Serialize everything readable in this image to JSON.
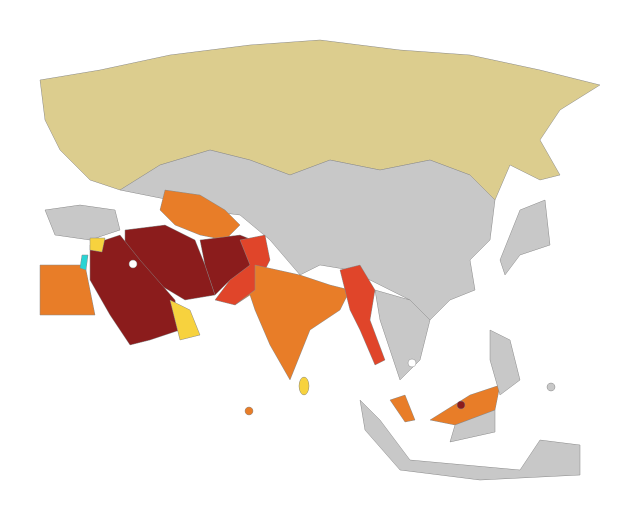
{
  "map": {
    "fills": {
      "land": "#c8c8c8",
      "russia": "#dccd8e",
      "dark_red": "#8b1c1c",
      "red": "#e0452a",
      "orange": "#e87d28",
      "yellow": "#f7d23e",
      "cyan": "#2ad4d4",
      "sea": "#ffffff"
    }
  }
}
